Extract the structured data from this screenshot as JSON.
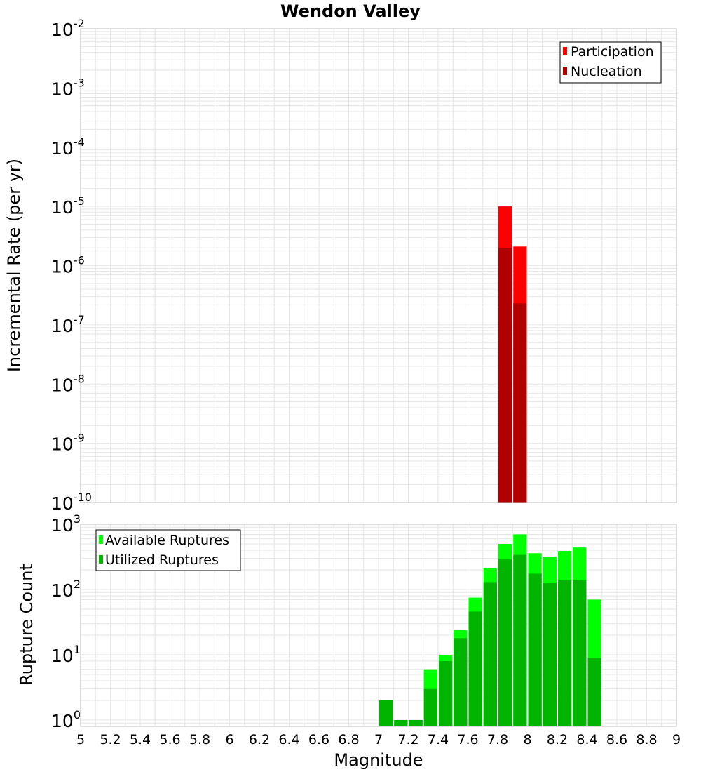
{
  "title": "Wendon Valley",
  "xlabel": "Magnitude",
  "colors": {
    "participation": "#ff0000",
    "nucleation": "#b00000",
    "available": "#00ff00",
    "utilized": "#00b400",
    "grid": "#e6e6e6",
    "frame": "#bbbbbb"
  },
  "chart_data": [
    {
      "type": "bar",
      "ylabel": "Incremental Rate (per yr)",
      "y_scale": "log",
      "ylim": [
        1e-10,
        0.01
      ],
      "xlim": [
        5,
        9
      ],
      "bin_width": 0.1,
      "y_ticks": [
        {
          "base": "10",
          "exp": "-2",
          "value": 0.01
        },
        {
          "base": "10",
          "exp": "-3",
          "value": 0.001
        },
        {
          "base": "10",
          "exp": "-4",
          "value": 0.0001
        },
        {
          "base": "10",
          "exp": "-5",
          "value": 1e-05
        },
        {
          "base": "10",
          "exp": "-6",
          "value": 1e-06
        },
        {
          "base": "10",
          "exp": "-7",
          "value": 1e-07
        },
        {
          "base": "10",
          "exp": "-8",
          "value": 1e-08
        },
        {
          "base": "10",
          "exp": "-9",
          "value": 1e-09
        },
        {
          "base": "10",
          "exp": "-10",
          "value": 1e-10
        }
      ],
      "legend": {
        "position": "top-right",
        "items": [
          "Participation",
          "Nucleation"
        ]
      },
      "series": [
        {
          "name": "Participation",
          "x": [
            7.85,
            7.95
          ],
          "values": [
            1e-05,
            2.1e-06
          ]
        },
        {
          "name": "Nucleation",
          "x": [
            7.85,
            7.95
          ],
          "values": [
            2e-06,
            2.3e-07
          ]
        }
      ]
    },
    {
      "type": "bar",
      "ylabel": "Rupture Count",
      "y_scale": "log",
      "ylim": [
        0.8,
        1000
      ],
      "xlim": [
        5,
        9
      ],
      "bin_width": 0.1,
      "y_ticks": [
        {
          "base": "10",
          "exp": "3",
          "value": 1000
        },
        {
          "base": "10",
          "exp": "2",
          "value": 100
        },
        {
          "base": "10",
          "exp": "1",
          "value": 10
        },
        {
          "base": "10",
          "exp": "0",
          "value": 1
        }
      ],
      "legend": {
        "position": "top-left",
        "items": [
          "Available Ruptures",
          "Utilized Ruptures"
        ]
      },
      "series": [
        {
          "name": "Available Ruptures",
          "x": [
            7.05,
            7.15,
            7.25,
            7.35,
            7.45,
            7.55,
            7.65,
            7.75,
            7.85,
            7.95,
            8.05,
            8.15,
            8.25,
            8.35,
            8.45
          ],
          "values": [
            2,
            1,
            1,
            6,
            10,
            24,
            75,
            210,
            500,
            700,
            360,
            320,
            390,
            440,
            70
          ]
        },
        {
          "name": "Utilized Ruptures",
          "x": [
            7.05,
            7.15,
            7.25,
            7.35,
            7.45,
            7.55,
            7.65,
            7.75,
            7.85,
            7.95,
            8.05,
            8.15,
            8.25,
            8.35,
            8.45
          ],
          "values": [
            2,
            1,
            1,
            3,
            8,
            18,
            46,
            130,
            290,
            340,
            175,
            125,
            138,
            138,
            9
          ]
        }
      ]
    }
  ],
  "x_ticks": [
    "5",
    "5.2",
    "5.4",
    "5.6",
    "5.8",
    "6",
    "6.2",
    "6.4",
    "6.6",
    "6.8",
    "7",
    "7.2",
    "7.4",
    "7.6",
    "7.8",
    "8",
    "8.2",
    "8.4",
    "8.6",
    "8.8",
    "9"
  ]
}
